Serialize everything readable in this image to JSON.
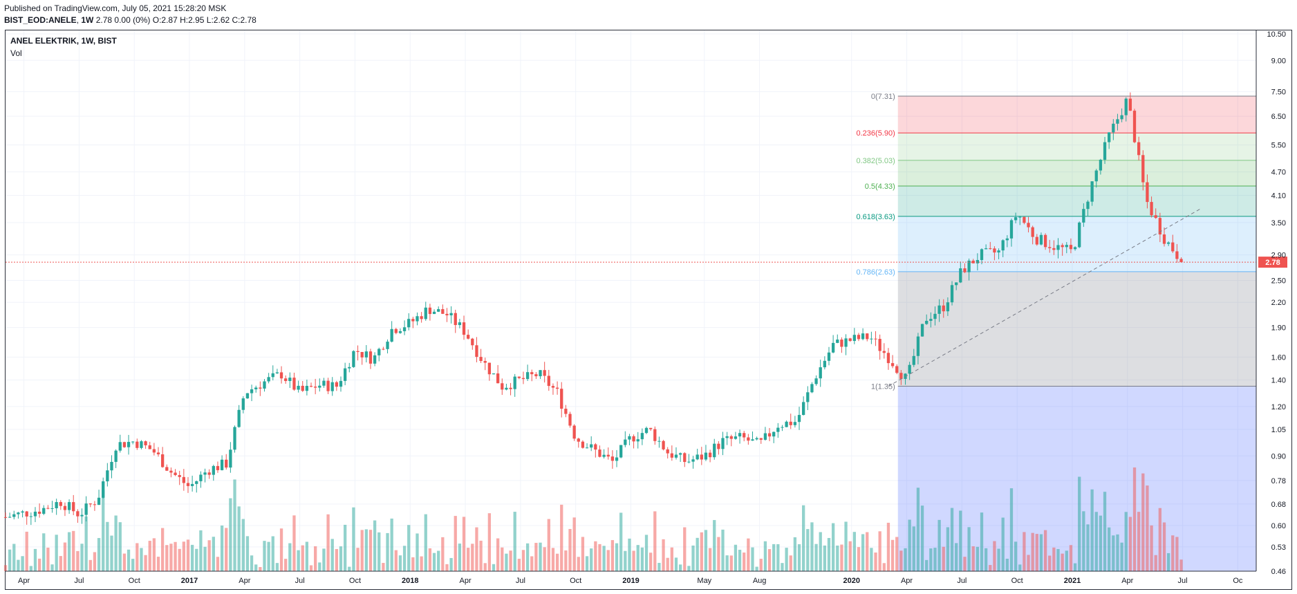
{
  "header": {
    "published": "Published on TradingView.com, July 05, 2021 15:28:20 MSK",
    "symbol": "BIST_EOD:ANELE",
    "interval": "1W",
    "quote": "2.78 0.00 (0%) O:2.87 H:2.95 L:2.62 C:2.78"
  },
  "legend": {
    "title": "ANEL ELEKTRIK, 1W, BIST",
    "vol_label": "Vol"
  },
  "colors": {
    "up": "#26a69a",
    "down": "#ef5350",
    "grid": "#f0f3fa",
    "price_tag": "#ef5350"
  },
  "chart_data": {
    "type": "candlestick",
    "scale": "log",
    "y_axis_ticks": [
      "10.50",
      "9.00",
      "7.50",
      "6.50",
      "5.50",
      "4.70",
      "4.10",
      "3.50",
      "2.90",
      "2.50",
      "2.20",
      "1.90",
      "1.60",
      "1.40",
      "1.20",
      "1.05",
      "0.90",
      "0.78",
      "0.68",
      "0.60",
      "0.53",
      "0.46"
    ],
    "x_axis_ticks": [
      "Apr",
      "Jul",
      "Oct",
      "2017",
      "Apr",
      "Jul",
      "Oct",
      "2018",
      "Apr",
      "Jul",
      "Oct",
      "2019",
      "May",
      "Aug",
      "2020",
      "Apr",
      "Jul",
      "Oct",
      "2021",
      "Apr",
      "Jul",
      "Oc"
    ],
    "last_price": "2.78",
    "fibonacci": [
      {
        "label": "0(7.31)",
        "value": 7.31,
        "color": "#787b86"
      },
      {
        "label": "0.236(5.90)",
        "value": 5.9,
        "color": "#f23645"
      },
      {
        "label": "0.382(5.03)",
        "value": 5.03,
        "color": "#81c784"
      },
      {
        "label": "0.5(4.33)",
        "value": 4.33,
        "color": "#4caf50"
      },
      {
        "label": "0.618(3.63)",
        "value": 3.63,
        "color": "#089981"
      },
      {
        "label": "0.786(2.63)",
        "value": 2.63,
        "color": "#64b5f6"
      },
      {
        "label": "1(1.35)",
        "value": 1.35,
        "color": "#787b86"
      }
    ],
    "trend_line": {
      "from": [
        "2020-03",
        1.35
      ],
      "to": [
        "2021-08",
        3.8
      ]
    },
    "price_path": [
      [
        "2016-03",
        0.63
      ],
      [
        "2016-05",
        0.66
      ],
      [
        "2016-06",
        0.69
      ],
      [
        "2016-07",
        0.64
      ],
      [
        "2016-08",
        0.7
      ],
      [
        "2016-09",
        0.96
      ],
      [
        "2016-10",
        0.98
      ],
      [
        "2016-11",
        0.93
      ],
      [
        "2016-12",
        0.82
      ],
      [
        "2017-01",
        0.75
      ],
      [
        "2017-02",
        0.83
      ],
      [
        "2017-03",
        0.86
      ],
      [
        "2017-04",
        1.3
      ],
      [
        "2017-05",
        1.38
      ],
      [
        "2017-06",
        1.45
      ],
      [
        "2017-07",
        1.3
      ],
      [
        "2017-08",
        1.36
      ],
      [
        "2017-09",
        1.35
      ],
      [
        "2017-10",
        1.67
      ],
      [
        "2017-11",
        1.58
      ],
      [
        "2017-12",
        1.88
      ],
      [
        "2018-01",
        1.95
      ],
      [
        "2018-02",
        2.12
      ],
      [
        "2018-03",
        2.05
      ],
      [
        "2018-04",
        1.85
      ],
      [
        "2018-05",
        1.55
      ],
      [
        "2018-06",
        1.35
      ],
      [
        "2018-07",
        1.4
      ],
      [
        "2018-08",
        1.45
      ],
      [
        "2018-09",
        1.3
      ],
      [
        "2018-10",
        1.0
      ],
      [
        "2018-11",
        0.93
      ],
      [
        "2018-12",
        0.87
      ],
      [
        "2019-01",
        1.0
      ],
      [
        "2019-02",
        1.05
      ],
      [
        "2019-03",
        0.92
      ],
      [
        "2019-04",
        0.87
      ],
      [
        "2019-05",
        0.9
      ],
      [
        "2019-06",
        0.98
      ],
      [
        "2019-07",
        1.0
      ],
      [
        "2019-08",
        0.96
      ],
      [
        "2019-09",
        1.08
      ],
      [
        "2019-10",
        1.1
      ],
      [
        "2019-11",
        1.42
      ],
      [
        "2019-12",
        1.72
      ],
      [
        "2020-01",
        1.77
      ],
      [
        "2020-02",
        1.8
      ],
      [
        "2020-03",
        1.6
      ],
      [
        "2020-04",
        1.4
      ],
      [
        "2020-05",
        2.0
      ],
      [
        "2020-06",
        2.15
      ],
      [
        "2020-07",
        2.65
      ],
      [
        "2020-08",
        2.9
      ],
      [
        "2020-09",
        2.95
      ],
      [
        "2020-10",
        3.7
      ],
      [
        "2020-11",
        3.2
      ],
      [
        "2020-12",
        3.05
      ],
      [
        "2021-01",
        2.95
      ],
      [
        "2021-02",
        4.3
      ],
      [
        "2021-03",
        5.8
      ],
      [
        "2021-04",
        7.2
      ],
      [
        "2021-05",
        4.0
      ],
      [
        "2021-06",
        3.2
      ],
      [
        "2021-07",
        2.78
      ]
    ]
  }
}
